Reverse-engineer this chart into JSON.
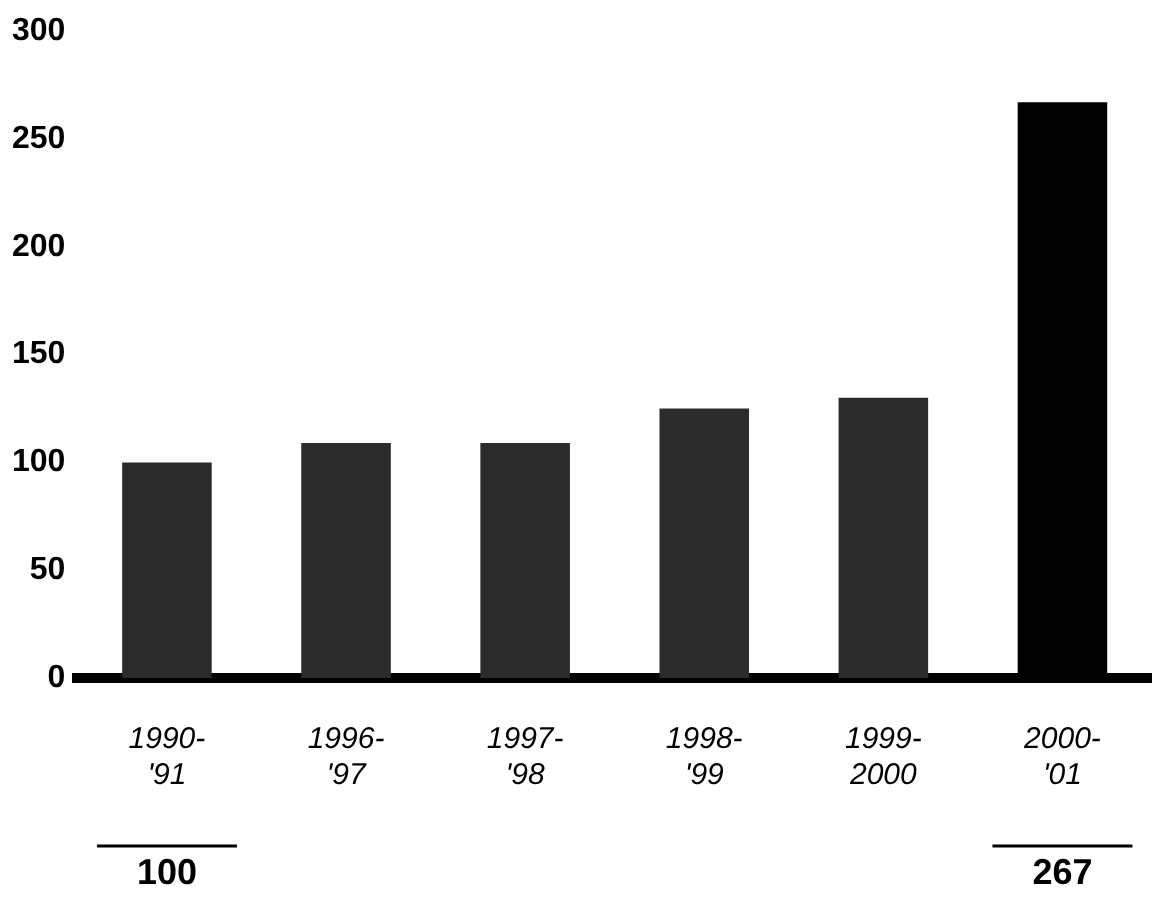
{
  "chart_data": {
    "type": "bar",
    "categories": [
      "1990-'91",
      "1996-'97",
      "1997-'98",
      "1998-'99",
      "1999-2000",
      "2000-'01"
    ],
    "values": [
      100,
      109,
      109,
      125,
      130,
      267
    ],
    "colors": [
      "#2b2b2b",
      "#2b2b2b",
      "#2b2b2b",
      "#2b2b2b",
      "#2b2b2b",
      "#000000"
    ],
    "value_labels": [
      "100",
      null,
      null,
      null,
      null,
      "267"
    ],
    "ylim": [
      0,
      300
    ],
    "yticks": [
      0,
      50,
      100,
      150,
      200,
      250,
      300
    ],
    "grid": false,
    "legend": false
  }
}
